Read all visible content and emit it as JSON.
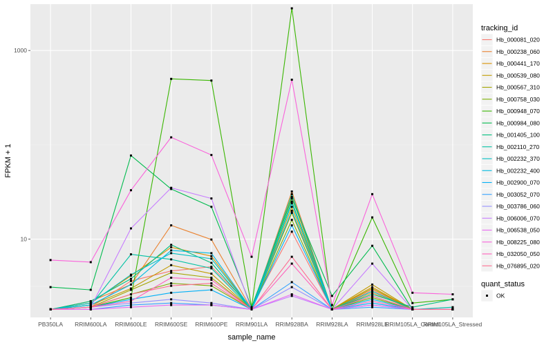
{
  "chart_data": {
    "type": "line",
    "xlabel": "sample_name",
    "ylabel": "FPKM + 1",
    "y_scale": "log10",
    "ylim": [
      1.48,
      3100
    ],
    "y_ticks": [
      10,
      1000
    ],
    "y_tick_labels": [
      "10",
      "1000"
    ],
    "grid": true,
    "categories": [
      "PB350LA",
      "RRIM600LA",
      "RRIM600LE",
      "RRIM600SE",
      "RRIM600PE",
      "RRIM901LA",
      "RRIM928BA",
      "RRIM928LA",
      "RRIM928LE",
      "RRIM105LA_Control",
      "RRIM105LA_Stressed"
    ],
    "legend": {
      "title": "tracking_id",
      "position": "right",
      "entries": [
        "Hb_000081_020",
        "Hb_000238_060",
        "Hb_000441_170",
        "Hb_000539_080",
        "Hb_000567_310",
        "Hb_000758_030",
        "Hb_000948_070",
        "Hb_000984_080",
        "Hb_001405_100",
        "Hb_002110_270",
        "Hb_002232_370",
        "Hb_002232_400",
        "Hb_002900_070",
        "Hb_003052_070",
        "Hb_003786_060",
        "Hb_006006_070",
        "Hb_006538_050",
        "Hb_008225_080",
        "Hb_032050_050",
        "Hb_076895_020"
      ]
    },
    "shape_legend": {
      "title": "quant_status",
      "entries": [
        "OK"
      ]
    },
    "series": [
      {
        "name": "Hb_000081_020",
        "color": "#F8766D",
        "values": [
          1.8,
          1.9,
          3.6,
          4.6,
          5.1,
          1.9,
          12,
          1.8,
          2.9,
          1.8,
          1.8
        ]
      },
      {
        "name": "Hb_000238_060",
        "color": "#EA8331",
        "values": [
          1.8,
          2.2,
          3.3,
          14,
          9.9,
          1.8,
          32,
          1.8,
          2.7,
          1.8,
          1.8
        ]
      },
      {
        "name": "Hb_000441_170",
        "color": "#D89000",
        "values": [
          1.8,
          2.1,
          4.1,
          8.2,
          6.6,
          1.8,
          28,
          1.8,
          3.1,
          1.8,
          1.8
        ]
      },
      {
        "name": "Hb_000539_080",
        "color": "#C09B00",
        "values": [
          1.8,
          2.0,
          3.0,
          5.3,
          4.3,
          1.8,
          22,
          1.8,
          3.3,
          1.8,
          1.8
        ]
      },
      {
        "name": "Hb_000567_310",
        "color": "#A3A500",
        "values": [
          1.8,
          1.9,
          2.9,
          4.4,
          3.9,
          1.8,
          19,
          1.8,
          3.0,
          1.8,
          1.8
        ]
      },
      {
        "name": "Hb_000758_030",
        "color": "#7CAE00",
        "values": [
          1.8,
          1.9,
          2.6,
          3.4,
          3.2,
          1.8,
          16,
          1.8,
          2.4,
          1.8,
          1.8
        ]
      },
      {
        "name": "Hb_000948_070",
        "color": "#39B600",
        "values": [
          1.8,
          1.9,
          2.4,
          500,
          480,
          1.9,
          2800,
          1.8,
          17,
          2.1,
          2.3
        ]
      },
      {
        "name": "Hb_000984_080",
        "color": "#00BB4E",
        "values": [
          3.1,
          2.9,
          77,
          34,
          22,
          1.9,
          27,
          2.5,
          8.5,
          1.8,
          1.8
        ]
      },
      {
        "name": "Hb_001405_100",
        "color": "#00BF7D",
        "values": [
          1.8,
          2.2,
          3.8,
          8.7,
          5.6,
          1.8,
          25,
          1.8,
          2.6,
          1.9,
          2.3
        ]
      },
      {
        "name": "Hb_002110_270",
        "color": "#00C1A3",
        "values": [
          1.8,
          2.0,
          6.9,
          6.1,
          4.9,
          1.8,
          30,
          1.8,
          2.8,
          1.8,
          1.9
        ]
      },
      {
        "name": "Hb_002232_370",
        "color": "#00BFC4",
        "values": [
          1.8,
          2.1,
          4.2,
          7.1,
          6.2,
          1.8,
          24,
          1.8,
          2.5,
          1.8,
          1.8
        ]
      },
      {
        "name": "Hb_002232_400",
        "color": "#00BAE0",
        "values": [
          1.8,
          2.0,
          3.3,
          7.6,
          7.1,
          1.8,
          20,
          1.8,
          2.3,
          1.8,
          1.8
        ]
      },
      {
        "name": "Hb_002900_070",
        "color": "#00B0F6",
        "values": [
          1.8,
          1.9,
          2.3,
          2.7,
          2.9,
          1.8,
          14,
          1.8,
          2.1,
          1.8,
          1.8
        ]
      },
      {
        "name": "Hb_003052_070",
        "color": "#35A2FF",
        "values": [
          1.8,
          1.8,
          2.0,
          2.1,
          2.0,
          1.8,
          3.5,
          1.8,
          1.9,
          1.8,
          1.8
        ]
      },
      {
        "name": "Hb_003786_060",
        "color": "#9590FF",
        "values": [
          1.8,
          1.9,
          2.1,
          2.3,
          2.1,
          1.8,
          3.1,
          1.8,
          2.0,
          1.8,
          1.8
        ]
      },
      {
        "name": "Hb_006006_070",
        "color": "#C77CFF",
        "values": [
          1.8,
          1.9,
          13,
          35,
          27,
          1.8,
          2.5,
          1.8,
          5.5,
          1.8,
          1.8
        ]
      },
      {
        "name": "Hb_006538_050",
        "color": "#E76BF3",
        "values": [
          1.8,
          1.8,
          1.9,
          2.0,
          2.0,
          1.8,
          2.6,
          1.8,
          2.0,
          1.8,
          1.8
        ]
      },
      {
        "name": "Hb_008225_080",
        "color": "#FA62DB",
        "values": [
          6.0,
          5.7,
          33,
          120,
          78,
          6.5,
          490,
          2.0,
          30,
          2.7,
          2.6
        ]
      },
      {
        "name": "Hb_032050_050",
        "color": "#FF62BC",
        "values": [
          1.8,
          1.9,
          2.2,
          3.9,
          3.7,
          1.8,
          5.5,
          1.8,
          2.2,
          1.8,
          1.8
        ]
      },
      {
        "name": "Hb_076895_020",
        "color": "#FF6C91",
        "values": [
          1.8,
          1.9,
          2.6,
          3.2,
          3.4,
          1.8,
          6.5,
          1.8,
          2.5,
          1.8,
          1.8
        ]
      }
    ]
  }
}
